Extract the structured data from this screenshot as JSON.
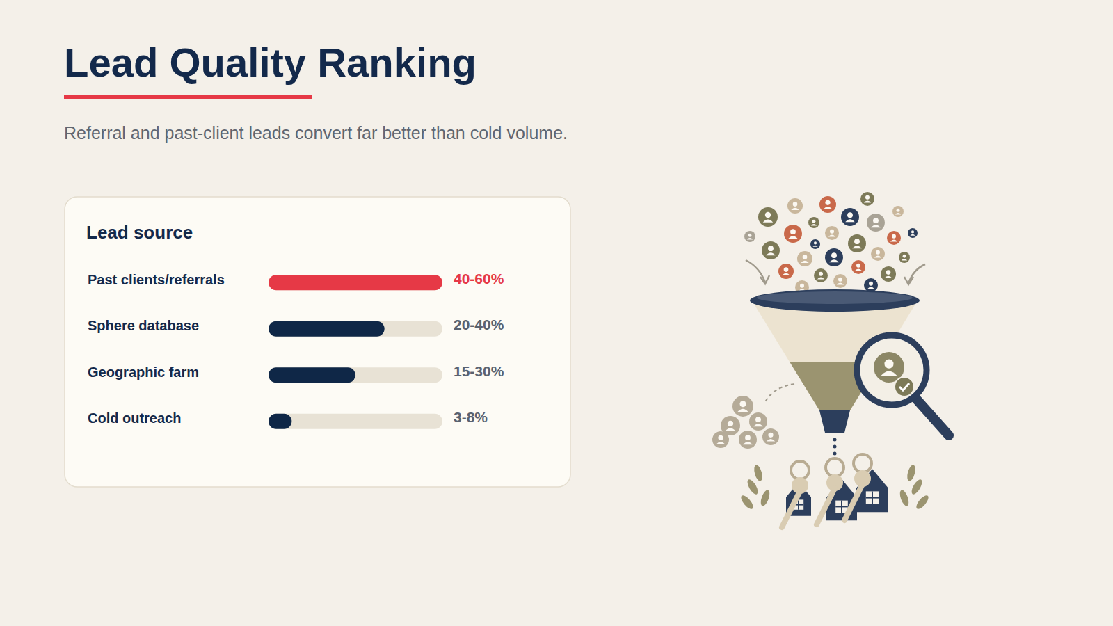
{
  "chart_data": {
    "type": "bar",
    "orientation": "horizontal",
    "title": "Lead Quality Ranking",
    "subtitle": "Referral and past-client leads convert far better than cold volume.",
    "ylabel": "Lead source",
    "categories": [
      "Past clients/referrals",
      "Sphere database",
      "Geographic farm",
      "Cold outreach"
    ],
    "values": [
      60,
      40,
      30,
      8
    ],
    "value_labels": [
      "40-60%",
      "20-40%",
      "15-30%",
      "3-8%"
    ],
    "colors": [
      "#e63946",
      "#0f2747",
      "#0f2747",
      "#0f2747"
    ],
    "xlim": [
      0,
      60
    ],
    "data_labels": true,
    "tick_labels": "y",
    "grid": false
  }
}
